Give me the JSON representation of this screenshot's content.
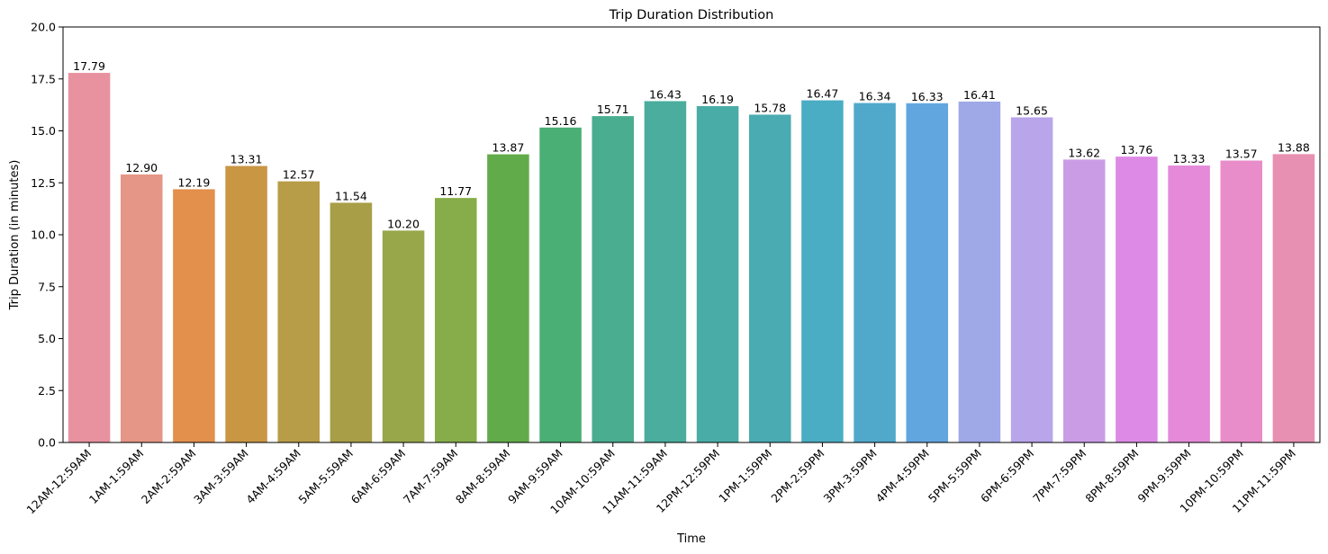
{
  "chart_data": {
    "type": "bar",
    "title": "Trip Duration Distribution",
    "xlabel": "Time",
    "ylabel": "Trip Duration (in minutes)",
    "ylim": [
      0,
      20
    ],
    "yticks": [
      "0.0",
      "2.5",
      "5.0",
      "7.5",
      "10.0",
      "12.5",
      "15.0",
      "17.5",
      "20.0"
    ],
    "grid": false,
    "categories": [
      "12AM-12:59AM",
      "1AM-1:59AM",
      "2AM-2:59AM",
      "3AM-3:59AM",
      "4AM-4:59AM",
      "5AM-5:59AM",
      "6AM-6:59AM",
      "7AM-7:59AM",
      "8AM-8:59AM",
      "9AM-9:59AM",
      "10AM-10:59AM",
      "11AM-11:59AM",
      "12PM-12:59PM",
      "1PM-1:59PM",
      "2PM-2:59PM",
      "3PM-3:59PM",
      "4PM-4:59PM",
      "5PM-5:59PM",
      "6PM-6:59PM",
      "7PM-7:59PM",
      "8PM-8:59PM",
      "9PM-9:59PM",
      "10PM-10:59PM",
      "11PM-11:59PM"
    ],
    "values": [
      17.79,
      12.9,
      12.19,
      13.31,
      12.57,
      11.54,
      10.2,
      11.77,
      13.87,
      15.16,
      15.71,
      16.43,
      16.19,
      15.78,
      16.47,
      16.34,
      16.33,
      16.41,
      15.65,
      13.62,
      13.76,
      13.33,
      13.57,
      13.88
    ],
    "value_labels": [
      "17.79",
      "12.90",
      "12.19",
      "13.31",
      "12.57",
      "11.54",
      "10.20",
      "11.77",
      "13.87",
      "15.16",
      "15.71",
      "16.43",
      "16.19",
      "15.78",
      "16.47",
      "16.34",
      "16.33",
      "16.41",
      "15.65",
      "13.62",
      "13.76",
      "13.33",
      "13.57",
      "13.88"
    ],
    "colors": [
      "#e8929f",
      "#e59686",
      "#e2904c",
      "#c99644",
      "#b89d48",
      "#a79e47",
      "#98a74a",
      "#87ad4a",
      "#62ab4a",
      "#4aaf74",
      "#4aad90",
      "#4aad9d",
      "#4aaca6",
      "#4aabb2",
      "#4badc3",
      "#50a9cb",
      "#62a6df",
      "#9fa9e8",
      "#b8a5ea",
      "#ca9ce6",
      "#dc8ae5",
      "#e48ad9",
      "#e88dc9",
      "#e890b2"
    ]
  }
}
